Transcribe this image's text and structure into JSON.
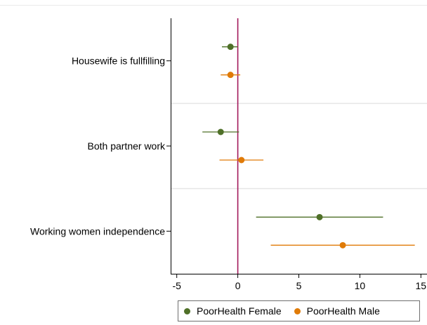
{
  "chart_data": {
    "type": "scatter",
    "subtype": "coefficient-plot",
    "title": "",
    "xlabel": "",
    "ylabel": "",
    "xlim": [
      -5.5,
      15.5
    ],
    "xticks": [
      -5,
      0,
      5,
      10,
      15
    ],
    "reference_line": {
      "x": 0,
      "color": "#a2185b"
    },
    "grid": "horizontal separators between categories",
    "legend_position": "bottom",
    "categories": [
      "Housewife is fullfilling",
      "Both partner work",
      "Working women independence"
    ],
    "series": [
      {
        "name": "PoorHealth Female",
        "color": "#4f7028",
        "points": [
          {
            "category": "Housewife is fullfilling",
            "estimate": -0.6,
            "ci": [
              -1.3,
              0.0
            ]
          },
          {
            "category": "Both partner work",
            "estimate": -1.4,
            "ci": [
              -2.9,
              0.1
            ]
          },
          {
            "category": "Working women independence",
            "estimate": 6.7,
            "ci": [
              1.5,
              11.9
            ]
          }
        ]
      },
      {
        "name": "PoorHealth Male",
        "color": "#e07b08",
        "points": [
          {
            "category": "Housewife is fullfilling",
            "estimate": -0.6,
            "ci": [
              -1.4,
              0.2
            ]
          },
          {
            "category": "Both partner work",
            "estimate": 0.3,
            "ci": [
              -1.5,
              2.1
            ]
          },
          {
            "category": "Working women independence",
            "estimate": 8.6,
            "ci": [
              2.7,
              14.5
            ]
          }
        ]
      }
    ]
  }
}
